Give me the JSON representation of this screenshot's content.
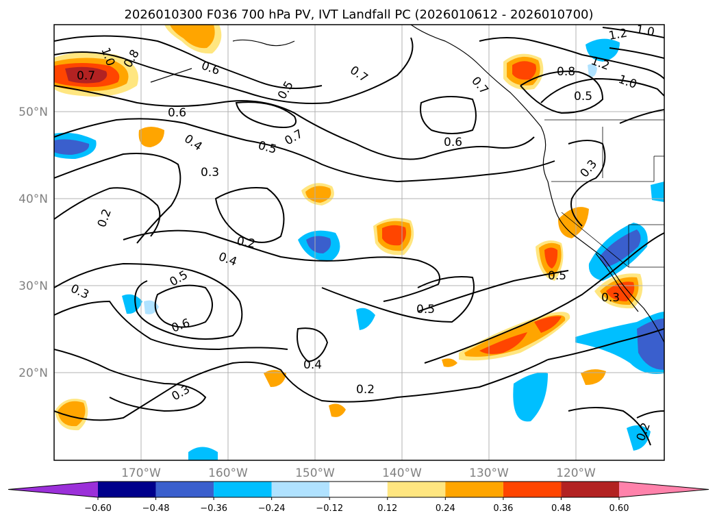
{
  "title": "2026010300 F036 700 hPa PV, IVT Landfall PC (2026010612 - 2026010700)",
  "latitude_labels": [
    "50°N",
    "40°N",
    "30°N",
    "20°N"
  ],
  "longitude_labels": [
    "170°W",
    "160°W",
    "150°W",
    "140°W",
    "130°W",
    "120°W"
  ],
  "colorbar": {
    "tick_labels": [
      "−0.60",
      "−0.48",
      "−0.36",
      "−0.24",
      "−0.12",
      "0.12",
      "0.24",
      "0.36",
      "0.48",
      "0.60"
    ],
    "colors": [
      "#9b30d9",
      "#00008b",
      "#3a5fcd",
      "#00bfff",
      "#b0e2ff",
      "#ffffff",
      "#ffe680",
      "#ffa500",
      "#ff4500",
      "#b22222",
      "#ff82ab"
    ],
    "extend": "both"
  },
  "pv_contour_labels": [
    "1.0",
    "0.7",
    "0.8",
    "0.6",
    "0.5",
    "0.7",
    "0.6",
    "0.4",
    "0.5",
    "0.7",
    "0.3",
    "0.2",
    "0.2",
    "0.4",
    "0.5",
    "0.3",
    "0.6",
    "0.3",
    "0.4",
    "0.2",
    "0.5",
    "0.6",
    "0.7",
    "0.8",
    "0.5",
    "1.2",
    "1.0",
    "1.2",
    "1.0",
    "0.3",
    "0.5",
    "0.3",
    "0.2"
  ],
  "chart_data": {
    "type": "map",
    "title": "2026010300 F036 700 hPa PV, IVT Landfall PC (2026010612 - 2026010700)",
    "region": {
      "lon_range": [
        -180,
        -110
      ],
      "lat_range": [
        10,
        60
      ]
    },
    "lat_ticks": [
      50,
      40,
      30,
      20
    ],
    "lon_ticks": [
      -170,
      -160,
      -150,
      -140,
      -130,
      -120
    ],
    "fill_variable": "IVT Landfall PC",
    "fill_levels": [
      -0.6,
      -0.48,
      -0.36,
      -0.24,
      -0.12,
      0.12,
      0.24,
      0.36,
      0.48,
      0.6
    ],
    "contour_variable": "700 hPa PV",
    "contour_levels": [
      0.2,
      0.3,
      0.4,
      0.5,
      0.6,
      0.7,
      0.8,
      1.0,
      1.2
    ]
  }
}
